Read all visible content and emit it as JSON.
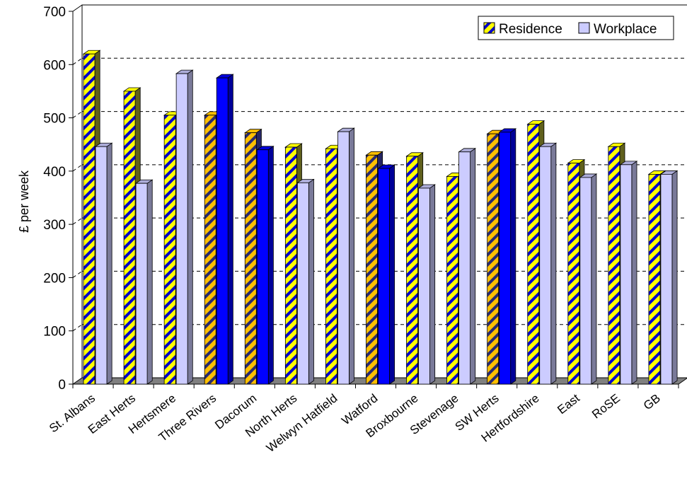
{
  "chart_data": {
    "type": "bar",
    "ylabel": "£ per week",
    "ylim": [
      0,
      700
    ],
    "ytick_labels": [
      "0",
      "100",
      "200",
      "300",
      "400",
      "500",
      "600",
      "700"
    ],
    "grid": "dashed horizontal",
    "legend_position": "top-right",
    "categories": [
      "St. Albans",
      "East Herts",
      "Hertsmere",
      "Three Rivers",
      "Dacorum",
      "North Herts",
      "Welwyn Hatfield",
      "Watford",
      "Broxbourne",
      "Stevenage",
      "SW Herts",
      "Hertfordshire",
      "East",
      "RoSE",
      "GB"
    ],
    "series": [
      {
        "name": "Residence",
        "values": [
          620,
          550,
          505,
          505,
          472,
          445,
          442,
          430,
          428,
          390,
          470,
          488,
          415,
          446,
          394
        ]
      },
      {
        "name": "Workplace",
        "values": [
          446,
          377,
          583,
          575,
          440,
          378,
          474,
          405,
          368,
          436,
          473,
          446,
          388,
          412,
          394
        ]
      }
    ],
    "highlighted_categories": [
      "Three Rivers",
      "Dacorum",
      "Watford",
      "SW Herts"
    ],
    "colors": {
      "residence_stripe_a": "#ffff00",
      "residence_stripe_b": "#0000cc",
      "residence_highlight_a": "#ffc000",
      "residence_highlight_b": "#2a2a6e",
      "workplace_fill": "#ccccff",
      "workplace_highlight_fill": "#0000ff",
      "floor": "#808080",
      "gridline": "#000000"
    }
  }
}
